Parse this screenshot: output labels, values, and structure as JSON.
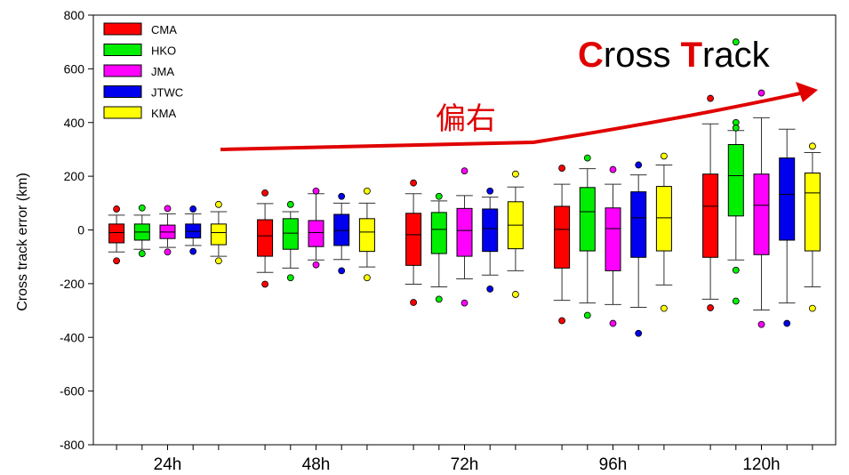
{
  "chart_data": {
    "type": "box",
    "categories": [
      "24h",
      "48h",
      "72h",
      "96h",
      "120h"
    ],
    "ylabel": "Cross track error (km)",
    "xlabel": "",
    "ylim": [
      -800,
      800
    ],
    "yticks": [
      -800,
      -600,
      -400,
      -200,
      0,
      200,
      400,
      600,
      800
    ],
    "legend_placement": "top-left",
    "series": [
      {
        "name": "CMA",
        "color": "#ff0000",
        "boxes": [
          {
            "whisker_low": -82,
            "q1": -48,
            "median": -10,
            "q3": 22,
            "whisker_high": 55,
            "outliers": [
              78,
              -115
            ]
          },
          {
            "whisker_low": -158,
            "q1": -98,
            "median": -22,
            "q3": 38,
            "whisker_high": 98,
            "outliers": [
              138,
              -202
            ]
          },
          {
            "whisker_low": -202,
            "q1": -132,
            "median": -18,
            "q3": 62,
            "whisker_high": 135,
            "outliers": [
              175,
              -270
            ]
          },
          {
            "whisker_low": -262,
            "q1": -142,
            "median": 2,
            "q3": 88,
            "whisker_high": 170,
            "outliers": [
              230,
              -338
            ]
          },
          {
            "whisker_low": -258,
            "q1": -102,
            "median": 88,
            "q3": 208,
            "whisker_high": 395,
            "outliers": [
              490,
              -290
            ]
          }
        ]
      },
      {
        "name": "HKO",
        "color": "#00ee00",
        "boxes": [
          {
            "whisker_low": -72,
            "q1": -38,
            "median": -8,
            "q3": 22,
            "whisker_high": 55,
            "outliers": [
              82,
              -88
            ]
          },
          {
            "whisker_low": -142,
            "q1": -72,
            "median": -12,
            "q3": 42,
            "whisker_high": 68,
            "outliers": [
              95,
              -178
            ]
          },
          {
            "whisker_low": -212,
            "q1": -88,
            "median": 2,
            "q3": 65,
            "whisker_high": 108,
            "outliers": [
              125,
              -258
            ]
          },
          {
            "whisker_low": -272,
            "q1": -78,
            "median": 68,
            "q3": 158,
            "whisker_high": 228,
            "outliers": [
              268,
              -318
            ]
          },
          {
            "whisker_low": -112,
            "q1": 52,
            "median": 202,
            "q3": 318,
            "whisker_high": 370,
            "outliers": [
              400,
              380,
              700,
              -150,
              -265
            ]
          }
        ]
      },
      {
        "name": "JMA",
        "color": "#ff00ff",
        "boxes": [
          {
            "whisker_low": -65,
            "q1": -32,
            "median": -8,
            "q3": 18,
            "whisker_high": 60,
            "outliers": [
              80,
              -82
            ]
          },
          {
            "whisker_low": -112,
            "q1": -62,
            "median": -10,
            "q3": 35,
            "whisker_high": 135,
            "outliers": [
              145,
              -130
            ]
          },
          {
            "whisker_low": -182,
            "q1": -98,
            "median": -2,
            "q3": 80,
            "whisker_high": 128,
            "outliers": [
              220,
              -272
            ]
          },
          {
            "whisker_low": -278,
            "q1": -152,
            "median": 5,
            "q3": 82,
            "whisker_high": 170,
            "outliers": [
              225,
              -348
            ]
          },
          {
            "whisker_low": -298,
            "q1": -92,
            "median": 92,
            "q3": 208,
            "whisker_high": 418,
            "outliers": [
              510,
              -352
            ]
          }
        ]
      },
      {
        "name": "JTWC",
        "color": "#0000ee",
        "boxes": [
          {
            "whisker_low": -58,
            "q1": -30,
            "median": -5,
            "q3": 22,
            "whisker_high": 60,
            "outliers": [
              78,
              -80
            ]
          },
          {
            "whisker_low": -110,
            "q1": -58,
            "median": -2,
            "q3": 58,
            "whisker_high": 100,
            "outliers": [
              125,
              -152
            ]
          },
          {
            "whisker_low": -168,
            "q1": -80,
            "median": 5,
            "q3": 78,
            "whisker_high": 122,
            "outliers": [
              145,
              -220
            ]
          },
          {
            "whisker_low": -288,
            "q1": -102,
            "median": 45,
            "q3": 142,
            "whisker_high": 205,
            "outliers": [
              242,
              -385
            ]
          },
          {
            "whisker_low": -272,
            "q1": -38,
            "median": 132,
            "q3": 268,
            "whisker_high": 375,
            "outliers": [
              -348
            ]
          }
        ]
      },
      {
        "name": "KMA",
        "color": "#ffff00",
        "boxes": [
          {
            "whisker_low": -98,
            "q1": -55,
            "median": -10,
            "q3": 22,
            "whisker_high": 68,
            "outliers": [
              95,
              -115
            ]
          },
          {
            "whisker_low": -138,
            "q1": -80,
            "median": -8,
            "q3": 42,
            "whisker_high": 100,
            "outliers": [
              145,
              -178
            ]
          },
          {
            "whisker_low": -152,
            "q1": -70,
            "median": 18,
            "q3": 105,
            "whisker_high": 160,
            "outliers": [
              208,
              -240
            ]
          },
          {
            "whisker_low": -205,
            "q1": -78,
            "median": 45,
            "q3": 162,
            "whisker_high": 242,
            "outliers": [
              275,
              -292
            ]
          },
          {
            "whisker_low": -212,
            "q1": -78,
            "median": 138,
            "q3": 212,
            "whisker_high": 288,
            "outliers": [
              312,
              -292
            ]
          }
        ]
      }
    ],
    "annotations": {
      "title_first_letter_1": "C",
      "title_rest_1": "ross ",
      "title_first_letter_2": "T",
      "title_rest_2": "rack",
      "chinese_label": "偏右",
      "accent_color": "#e00000"
    }
  }
}
